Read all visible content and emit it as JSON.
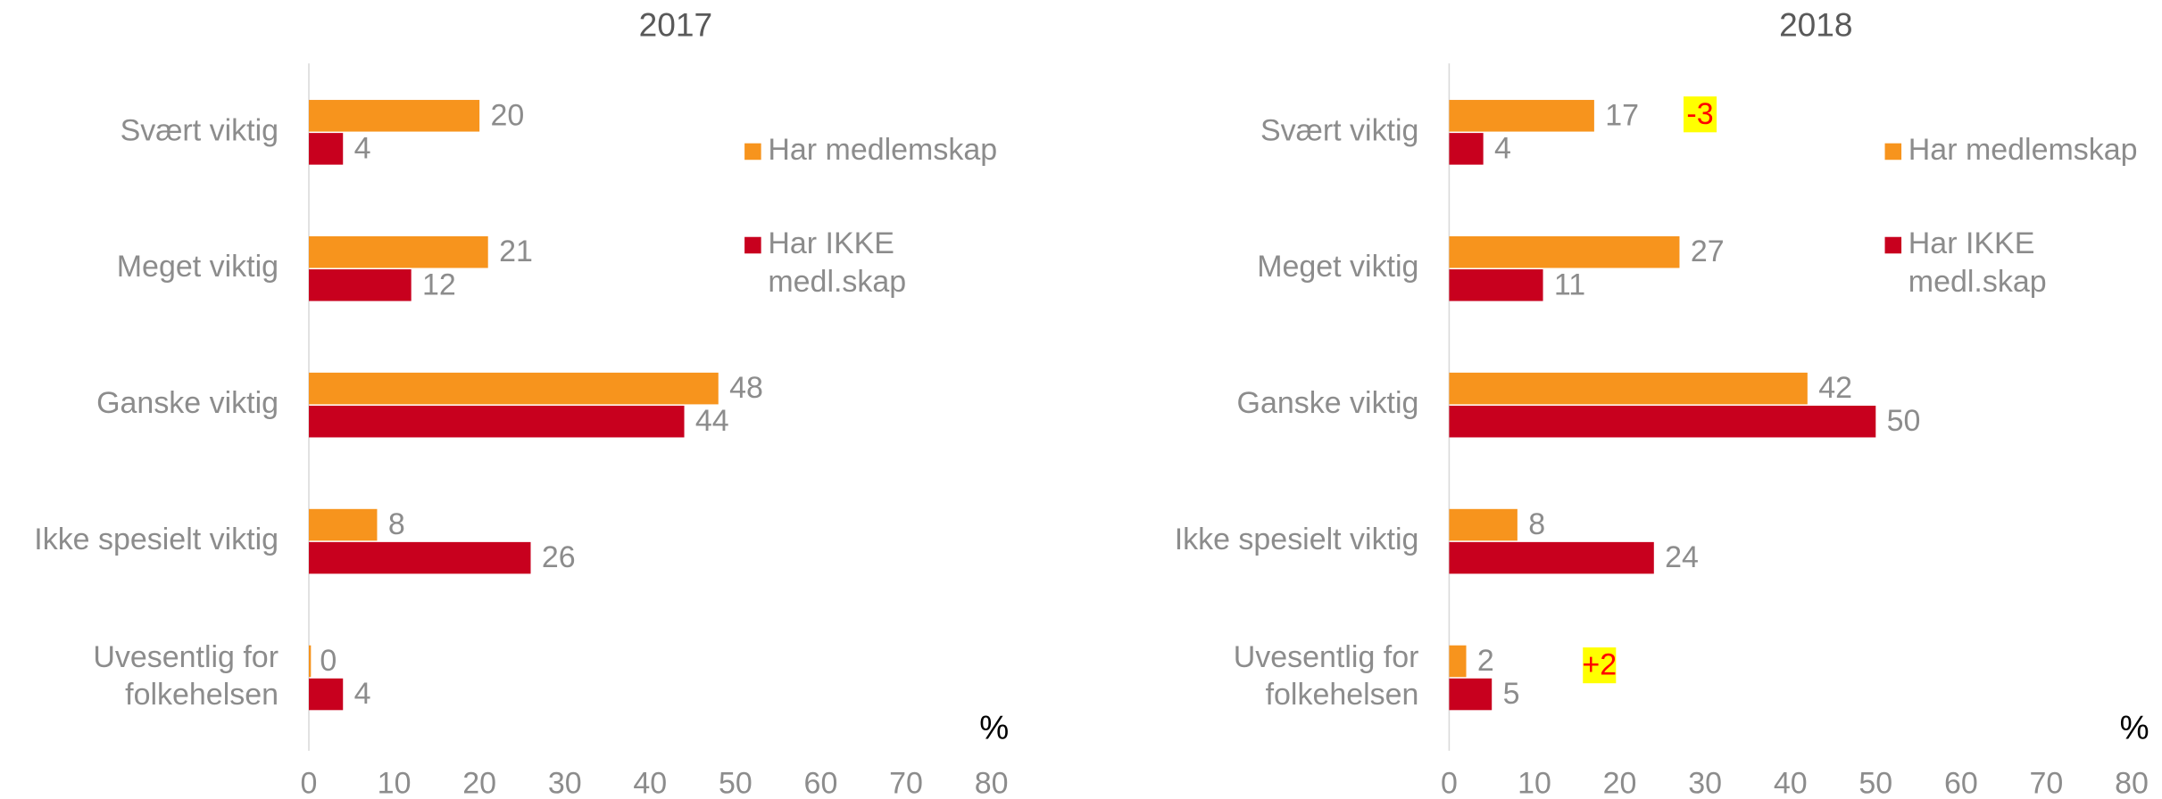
{
  "chart_data": [
    {
      "type": "hbar",
      "title": "2017",
      "categories": [
        "Svært viktig",
        "Meget viktig",
        "Ganske viktig",
        "Ikke spesielt viktig",
        "Uvesentlig for folkehelsen"
      ],
      "series": [
        {
          "name": "Har medlemskap",
          "color": "#F7941D",
          "values": [
            20,
            21,
            48,
            8,
            0
          ]
        },
        {
          "name": "Har IKKE medl.skap",
          "color": "#C8001E",
          "values": [
            4,
            12,
            44,
            26,
            4
          ]
        }
      ],
      "xlim": [
        0,
        80
      ],
      "xticks": [
        0,
        10,
        20,
        30,
        40,
        50,
        60,
        70,
        80
      ],
      "xlabel": "%",
      "legend": "right"
    },
    {
      "type": "hbar",
      "title": "2018",
      "categories": [
        "Svært viktig",
        "Meget viktig",
        "Ganske viktig",
        "Ikke spesielt viktig",
        "Uvesentlig for folkehelsen"
      ],
      "series": [
        {
          "name": "Har medlemskap",
          "color": "#F7941D",
          "values": [
            17,
            27,
            42,
            8,
            2
          ]
        },
        {
          "name": "Har IKKE medl.skap",
          "color": "#C8001E",
          "values": [
            4,
            11,
            50,
            24,
            5
          ]
        }
      ],
      "xlim": [
        0,
        80
      ],
      "xticks": [
        0,
        10,
        20,
        30,
        40,
        50,
        60,
        70,
        80
      ],
      "xlabel": "%",
      "legend": "right",
      "annotations": [
        "-3",
        "+2"
      ]
    }
  ]
}
